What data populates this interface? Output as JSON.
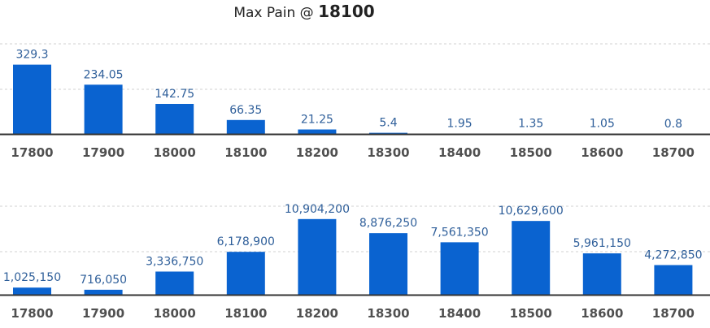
{
  "header": {
    "prefix": "Max Pain @ ",
    "value": "18100"
  },
  "colors": {
    "bar": "#0a63d0",
    "axis": "#333333",
    "grid": "#d0d0d0"
  },
  "chart_data": [
    {
      "type": "bar",
      "categories": [
        "17800",
        "17900",
        "18000",
        "18100",
        "18200",
        "18300",
        "18400",
        "18500",
        "18600",
        "18700"
      ],
      "values": [
        329.3,
        234.05,
        142.75,
        66.35,
        21.25,
        5.4,
        1.95,
        1.35,
        1.05,
        0.8
      ],
      "value_labels": [
        "329.3",
        "234.05",
        "142.75",
        "66.35",
        "21.25",
        "5.4",
        "1.95",
        "1.35",
        "1.05",
        "0.8"
      ],
      "ylim": [
        0,
        540
      ],
      "grid": true
    },
    {
      "type": "bar",
      "categories": [
        "17800",
        "17900",
        "18000",
        "18100",
        "18200",
        "18300",
        "18400",
        "18500",
        "18600",
        "18700"
      ],
      "values": [
        1025150,
        716050,
        3336750,
        6178900,
        10904200,
        8876250,
        7561350,
        10629600,
        5961150,
        4272850
      ],
      "value_labels": [
        "1,025,150",
        "716,050",
        "3,336,750",
        "6,178,900",
        "10,904,200",
        "8,876,250",
        "7,561,350",
        "10,629,600",
        "5,961,150",
        "4,272,850"
      ],
      "ylim": [
        0,
        16500000
      ],
      "grid": true
    }
  ]
}
